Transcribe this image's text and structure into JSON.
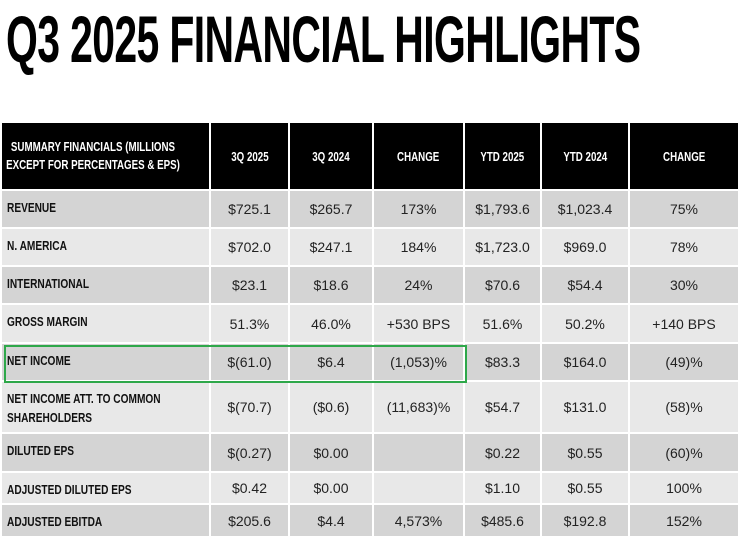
{
  "header": {
    "title": "Q3 2025 FINANCIAL HIGHLIGHTS"
  },
  "table": {
    "columns": [
      "SUMMARY FINANCIALS (MILLIONS EXCEPT FOR PERCENTAGES & EPS)",
      "3Q 2025",
      "3Q 2024",
      "CHANGE",
      "YTD 2025",
      "YTD 2024",
      "CHANGE"
    ],
    "rows": [
      [
        "REVENUE",
        "$725.1",
        "$265.7",
        "173%",
        "$1,793.6",
        "$1,023.4",
        "75%"
      ],
      [
        "N. AMERICA",
        "$702.0",
        "$247.1",
        "184%",
        "$1,723.0",
        "$969.0",
        "78%"
      ],
      [
        "INTERNATIONAL",
        "$23.1",
        "$18.6",
        "24%",
        "$70.6",
        "$54.4",
        "30%"
      ],
      [
        "GROSS MARGIN",
        "51.3%",
        "46.0%",
        "+530 BPS",
        "51.6%",
        "50.2%",
        "+140 BPS"
      ],
      [
        "NET INCOME",
        "$(61.0)",
        "$6.4",
        "(1,053)%",
        "$83.3",
        "$164.0",
        "(49)%"
      ],
      [
        "NET INCOME ATT. TO COMMON SHAREHOLDERS",
        "$(70.7)",
        "($0.6)",
        "(11,683)%",
        "$54.7",
        "$131.0",
        "(58)%"
      ],
      [
        "DILUTED EPS",
        "$(0.27)",
        "$0.00",
        null,
        "$0.22",
        "$0.55",
        "(60)%"
      ],
      [
        "ADJUSTED DILUTED EPS",
        "$0.42",
        "$0.00",
        null,
        "$1.10",
        "$0.55",
        "100%"
      ],
      [
        "ADJUSTED EBITDA",
        "$205.6",
        "$4.4",
        "4,573%",
        "$485.6",
        "$192.8",
        "152%"
      ]
    ]
  }
}
